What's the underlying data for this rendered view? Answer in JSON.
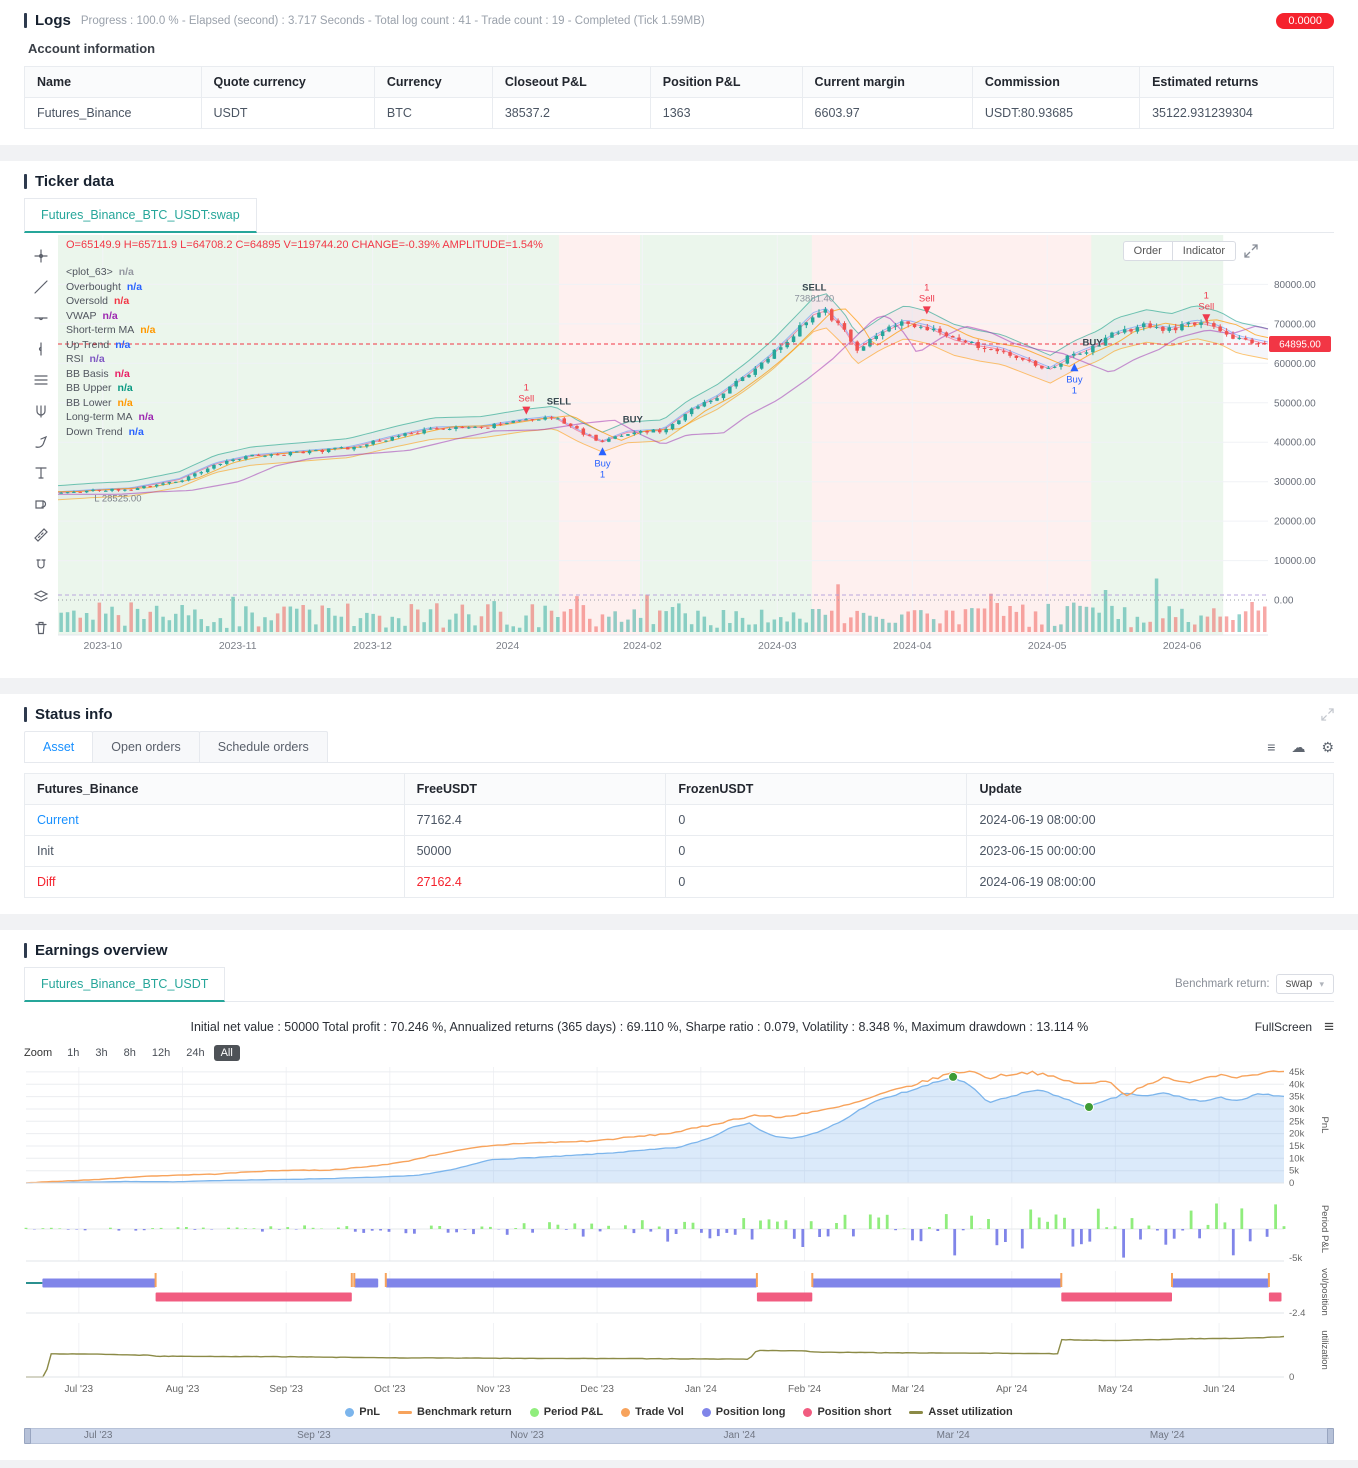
{
  "theme": {
    "accent": "#2e3a4e",
    "tab_active": "#26a69a",
    "link_blue": "#1890ff",
    "danger_red": "#f5222d",
    "candle_up": "#26a69a",
    "candle_down": "#ef5350",
    "buy_blue": "#2962ff",
    "sell_red": "#ef3b4f",
    "zone_green": "rgba(76,175,80,0.11)",
    "zone_pink": "rgba(244,67,54,0.08)"
  },
  "logs": {
    "title": "Logs",
    "progress_text": "Progress : 100.0 % - Elapsed (second) : 3.717 Seconds - Total log count : 41 - Trade count : 19 - Completed (Tick 1.59MB)",
    "badge": "0.0000",
    "account_info": {
      "title": "Account information",
      "columns": [
        "Name",
        "Quote currency",
        "Currency",
        "Closeout P&L",
        "Position P&L",
        "Current margin",
        "Commission",
        "Estimated returns"
      ],
      "rows": [
        [
          "Futures_Binance",
          "USDT",
          "BTC",
          "38537.2",
          "1363",
          "6603.97",
          "USDT:80.93685",
          "35122.931239304"
        ]
      ]
    }
  },
  "ticker": {
    "title": "Ticker data",
    "tab": "Futures_Binance_BTC_USDT:swap",
    "toolbar_icons": [
      "crosshair-icon",
      "trendline-icon",
      "horizontal-line-icon",
      "vertical-line-icon",
      "fib-icon",
      "pitchfork-icon",
      "brush-icon",
      "text-icon",
      "shapes-icon",
      "ruler-icon",
      "magnet-icon",
      "layers-icon",
      "trash-icon"
    ],
    "ohlc_line": "O=65149.9 H=65711.9 L=64708.2 C=64895 V=119744.20 CHANGE=-0.39% AMPLITUDE=1.54%",
    "buttons": [
      "Order",
      "Indicator"
    ],
    "legend": [
      {
        "label": "<plot_63>",
        "value": "n/a",
        "color": "#9598a1"
      },
      {
        "label": "Overbought",
        "value": "n/a",
        "color": "#2962ff"
      },
      {
        "label": "Oversold",
        "value": "n/a",
        "color": "#f23645"
      },
      {
        "label": "VWAP",
        "value": "n/a",
        "color": "#9c27b0"
      },
      {
        "label": "Short-term MA",
        "value": "n/a",
        "color": "#ff9800"
      },
      {
        "label": "Up Trend",
        "value": "n/a",
        "color": "#2962ff"
      },
      {
        "label": "RSI",
        "value": "n/a",
        "color": "#7e57c2"
      },
      {
        "label": "BB Basis",
        "value": "n/a",
        "color": "#e91e63"
      },
      {
        "label": "BB Upper",
        "value": "n/a",
        "color": "#089981"
      },
      {
        "label": "BB Lower",
        "value": "n/a",
        "color": "#ff9800"
      },
      {
        "label": "Long-term MA",
        "value": "n/a",
        "color": "#9c27b0"
      },
      {
        "label": "Down Trend",
        "value": "n/a",
        "color": "#2962ff"
      }
    ],
    "price_tag": "64895.00",
    "y_ticks": [
      "80000.00",
      "70000.00",
      "60000.00",
      "50000.00",
      "40000.00",
      "30000.00",
      "20000.00",
      "10000.00",
      "0.00"
    ],
    "x_ticks": [
      "2023-10",
      "2023-11",
      "2023-12",
      "2024",
      "2024-02",
      "2024-03",
      "2024-04",
      "2024-05",
      "2024-06"
    ]
  },
  "status": {
    "title": "Status info",
    "tabs": [
      "Asset",
      "Open orders",
      "Schedule orders"
    ],
    "active_tab": "Asset",
    "table": {
      "columns": [
        "Futures_Binance",
        "FreeUSDT",
        "FrozenUSDT",
        "Update"
      ],
      "rows": [
        [
          "Current",
          "77162.4",
          "0",
          "2024-06-19 08:00:00"
        ],
        [
          "Init",
          "50000",
          "0",
          "2023-06-15 00:00:00"
        ],
        [
          "Diff",
          "27162.4",
          "0",
          "2024-06-19 08:00:00"
        ]
      ]
    }
  },
  "earnings": {
    "title": "Earnings overview",
    "tab": "Futures_Binance_BTC_USDT",
    "benchmark_label": "Benchmark return:",
    "benchmark_value": "swap",
    "stats_line": "Initial net value : 50000 Total profit : 70.246 %, Annualized returns (365 days) : 69.110 %, Sharpe ratio : 0.079, Volatility : 8.348 %, Maximum drawdown : 13.114 %",
    "fullscreen_label": "FullScreen",
    "zoom_label": "Zoom",
    "zoom_options": [
      "1h",
      "3h",
      "8h",
      "12h",
      "24h",
      "All"
    ],
    "zoom_active": "All",
    "legend": [
      {
        "label": "PnL",
        "color": "#7cb5ec",
        "type": "dot"
      },
      {
        "label": "Benchmark return",
        "color": "#f7a35c",
        "type": "line"
      },
      {
        "label": "Period P&L",
        "color": "#90ed7d",
        "type": "dot"
      },
      {
        "label": "Trade Vol",
        "color": "#f7a35c",
        "type": "dot"
      },
      {
        "label": "Position long",
        "color": "#8085e9",
        "type": "dot"
      },
      {
        "label": "Position short",
        "color": "#f15c80",
        "type": "dot"
      },
      {
        "label": "Asset utilization",
        "color": "#8b8a46",
        "type": "line"
      }
    ],
    "axis_titles": [
      "PnL",
      "Period P&L",
      "vol/position",
      "utilization"
    ],
    "x_labels": [
      "Jul '23",
      "Aug '23",
      "Sep '23",
      "Oct '23",
      "Nov '23",
      "Dec '23",
      "Jan '24",
      "Feb '24",
      "Mar '24",
      "Apr '24",
      "May '24",
      "Jun '24"
    ],
    "navigator_labels": [
      "Jul '23",
      "Sep '23",
      "Nov '23",
      "Jan '24",
      "Mar '24",
      "May '24"
    ]
  },
  "chart_data": {
    "ticker_chart": {
      "type": "candlestick",
      "y_range": [
        0,
        90000
      ],
      "x_range": [
        "2023-09-27",
        "2024-06-20"
      ],
      "price_anchors": [
        [
          0,
          27200
        ],
        [
          0.03,
          27800
        ],
        [
          0.06,
          28200
        ],
        [
          0.1,
          30500
        ],
        [
          0.13,
          34500
        ],
        [
          0.16,
          36500
        ],
        [
          0.2,
          37500
        ],
        [
          0.24,
          38500
        ],
        [
          0.28,
          41500
        ],
        [
          0.31,
          43500
        ],
        [
          0.35,
          43800
        ],
        [
          0.385,
          45500
        ],
        [
          0.41,
          46300
        ],
        [
          0.43,
          42800
        ],
        [
          0.45,
          40000
        ],
        [
          0.47,
          42500
        ],
        [
          0.5,
          43000
        ],
        [
          0.52,
          47500
        ],
        [
          0.545,
          51500
        ],
        [
          0.57,
          57000
        ],
        [
          0.59,
          62000
        ],
        [
          0.61,
          68000
        ],
        [
          0.625,
          72500
        ],
        [
          0.635,
          73300
        ],
        [
          0.65,
          68500
        ],
        [
          0.66,
          63500
        ],
        [
          0.68,
          67500
        ],
        [
          0.7,
          70500
        ],
        [
          0.72,
          69000
        ],
        [
          0.74,
          66000
        ],
        [
          0.76,
          64500
        ],
        [
          0.78,
          63500
        ],
        [
          0.8,
          61000
        ],
        [
          0.82,
          58500
        ],
        [
          0.84,
          62000
        ],
        [
          0.86,
          64500
        ],
        [
          0.875,
          67500
        ],
        [
          0.9,
          69500
        ],
        [
          0.92,
          68500
        ],
        [
          0.94,
          70500
        ],
        [
          0.96,
          69000
        ],
        [
          0.975,
          66500
        ],
        [
          1,
          64895
        ]
      ],
      "zones": [
        {
          "from": 0,
          "to": 0.414,
          "color": "green"
        },
        {
          "from": 0.414,
          "to": 0.481,
          "color": "pink"
        },
        {
          "from": 0.481,
          "to": 0.623,
          "color": "green"
        },
        {
          "from": 0.623,
          "to": 0.854,
          "color": "pink"
        },
        {
          "from": 0.854,
          "to": 0.963,
          "color": "green"
        }
      ],
      "markers": [
        {
          "x": 0.387,
          "price": 47000,
          "side": "sell",
          "arrow": "down",
          "lines": [
            "1",
            "Sell"
          ]
        },
        {
          "x": 0.414,
          "price": 49600,
          "side": "sell",
          "arrow": null,
          "lines": [
            "SELL"
          ]
        },
        {
          "x": 0.45,
          "price": 38700,
          "side": "buy",
          "arrow": "up",
          "lines": [
            "Buy",
            "1"
          ]
        },
        {
          "x": 0.475,
          "price": 45000,
          "side": "buy",
          "arrow": null,
          "lines": [
            "BUY"
          ]
        },
        {
          "x": 0.625,
          "price": 78500,
          "side": "sell",
          "arrow": null,
          "lines": [
            "SELL",
            "73881.40"
          ]
        },
        {
          "x": 0.718,
          "price": 72400,
          "side": "sell",
          "arrow": "down",
          "lines": [
            "1",
            "Sell"
          ]
        },
        {
          "x": 0.84,
          "price": 60000,
          "side": "buy",
          "arrow": "up",
          "lines": [
            "Buy",
            "1"
          ]
        },
        {
          "x": 0.855,
          "price": 64500,
          "side": "buy",
          "arrow": null,
          "lines": [
            "BUY"
          ]
        },
        {
          "x": 0.949,
          "price": 70400,
          "side": "sell",
          "arrow": "down",
          "lines": [
            "1",
            "Sell"
          ]
        }
      ],
      "current_price": 64895,
      "last_candle": {
        "o": 65149.9,
        "h": 65711.9,
        "l": 64708.2,
        "c": 64895
      },
      "low_annotation": {
        "x": 0.03,
        "price": 28525,
        "text": "L  28525.00"
      },
      "candles": 190,
      "noise_seed": 11
    },
    "earnings_chart": {
      "type": "multi-panel",
      "seed": 7,
      "pnl": {
        "ylim": [
          0,
          47000
        ],
        "yticks": [
          "45k",
          "40k",
          "35k",
          "30k",
          "25k",
          "20k",
          "15k",
          "10k",
          "5k",
          "0"
        ],
        "anchors": [
          [
            0,
            0
          ],
          [
            0.04,
            300
          ],
          [
            0.08,
            600
          ],
          [
            0.12,
            500
          ],
          [
            0.16,
            1100
          ],
          [
            0.2,
            1400
          ],
          [
            0.24,
            1800
          ],
          [
            0.28,
            2400
          ],
          [
            0.31,
            3000
          ],
          [
            0.34,
            5500
          ],
          [
            0.37,
            9500
          ],
          [
            0.4,
            10200
          ],
          [
            0.43,
            11000
          ],
          [
            0.46,
            12000
          ],
          [
            0.49,
            13200
          ],
          [
            0.52,
            14500
          ],
          [
            0.545,
            18500
          ],
          [
            0.56,
            22500
          ],
          [
            0.575,
            24500
          ],
          [
            0.59,
            19500
          ],
          [
            0.61,
            18000
          ],
          [
            0.63,
            20500
          ],
          [
            0.65,
            25500
          ],
          [
            0.67,
            32000
          ],
          [
            0.69,
            35500
          ],
          [
            0.71,
            38500
          ],
          [
            0.725,
            41000
          ],
          [
            0.737,
            43000
          ],
          [
            0.75,
            39500
          ],
          [
            0.765,
            32500
          ],
          [
            0.78,
            34500
          ],
          [
            0.795,
            37000
          ],
          [
            0.81,
            37500
          ],
          [
            0.825,
            34000
          ],
          [
            0.845,
            30800
          ],
          [
            0.86,
            33500
          ],
          [
            0.875,
            36500
          ],
          [
            0.89,
            35000
          ],
          [
            0.905,
            36500
          ],
          [
            0.92,
            34500
          ],
          [
            0.935,
            33000
          ],
          [
            0.95,
            34500
          ],
          [
            0.965,
            33500
          ],
          [
            0.98,
            36000
          ],
          [
            1,
            35100
          ]
        ]
      },
      "benchmark": {
        "anchors": [
          [
            0,
            0
          ],
          [
            0.03,
            800
          ],
          [
            0.06,
            1500
          ],
          [
            0.09,
            2600
          ],
          [
            0.12,
            3200
          ],
          [
            0.15,
            3600
          ],
          [
            0.18,
            4600
          ],
          [
            0.21,
            5200
          ],
          [
            0.24,
            5200
          ],
          [
            0.27,
            6500
          ],
          [
            0.3,
            8500
          ],
          [
            0.33,
            12000
          ],
          [
            0.36,
            14500
          ],
          [
            0.39,
            16000
          ],
          [
            0.42,
            16500
          ],
          [
            0.45,
            17000
          ],
          [
            0.48,
            18500
          ],
          [
            0.51,
            20000
          ],
          [
            0.54,
            23000
          ],
          [
            0.565,
            26000
          ],
          [
            0.58,
            27500
          ],
          [
            0.6,
            26500
          ],
          [
            0.62,
            28500
          ],
          [
            0.64,
            30000
          ],
          [
            0.66,
            32500
          ],
          [
            0.68,
            36000
          ],
          [
            0.7,
            39000
          ],
          [
            0.72,
            42000
          ],
          [
            0.735,
            44500
          ],
          [
            0.75,
            45500
          ],
          [
            0.765,
            42500
          ],
          [
            0.78,
            44000
          ],
          [
            0.8,
            45000
          ],
          [
            0.815,
            43000
          ],
          [
            0.83,
            41000
          ],
          [
            0.845,
            40000
          ],
          [
            0.86,
            41500
          ],
          [
            0.875,
            35500
          ],
          [
            0.89,
            40000
          ],
          [
            0.905,
            42500
          ],
          [
            0.92,
            40500
          ],
          [
            0.935,
            42500
          ],
          [
            0.95,
            44000
          ],
          [
            0.965,
            43000
          ],
          [
            0.98,
            44500
          ],
          [
            1,
            45200
          ]
        ]
      },
      "max_markers": [
        [
          0.737,
          43000
        ],
        [
          0.845,
          30800
        ]
      ],
      "period_pnl": {
        "ylim": [
          -5500,
          5500
        ],
        "count": 150,
        "min_label": "-5k"
      },
      "positions": {
        "min_label": "-2.4",
        "segments": [
          {
            "from": 0,
            "to": 0.013,
            "side": "flat"
          },
          {
            "from": 0.013,
            "to": 0.103,
            "side": "long"
          },
          {
            "from": 0.103,
            "to": 0.259,
            "side": "short"
          },
          {
            "from": 0.261,
            "to": 0.28,
            "side": "long"
          },
          {
            "from": 0.286,
            "to": 0.581,
            "side": "long"
          },
          {
            "from": 0.581,
            "to": 0.625,
            "side": "short"
          },
          {
            "from": 0.625,
            "to": 0.823,
            "side": "long"
          },
          {
            "from": 0.823,
            "to": 0.911,
            "side": "short"
          },
          {
            "from": 0.911,
            "to": 0.988,
            "side": "long"
          },
          {
            "from": 0.988,
            "to": 0.998,
            "side": "short"
          }
        ]
      },
      "trade_ticks": [
        0.103,
        0.259,
        0.261,
        0.286,
        0.581,
        0.625,
        0.823,
        0.911,
        0.988
      ],
      "utilization": {
        "ylim": [
          0,
          1.3
        ],
        "min_label": "0",
        "anchors": [
          [
            0,
            0
          ],
          [
            0.016,
            0
          ],
          [
            0.018,
            0.56
          ],
          [
            0.06,
            0.55
          ],
          [
            0.1,
            0.52
          ],
          [
            0.103,
            0.5
          ],
          [
            0.2,
            0.49
          ],
          [
            0.26,
            0.47
          ],
          [
            0.3,
            0.46
          ],
          [
            0.4,
            0.45
          ],
          [
            0.5,
            0.44
          ],
          [
            0.575,
            0.43
          ],
          [
            0.581,
            0.64
          ],
          [
            0.62,
            0.63
          ],
          [
            0.625,
            0.6
          ],
          [
            0.7,
            0.58
          ],
          [
            0.78,
            0.57
          ],
          [
            0.82,
            0.56
          ],
          [
            0.823,
            0.9
          ],
          [
            0.86,
            0.88
          ],
          [
            0.9,
            0.9
          ],
          [
            0.92,
            0.92
          ],
          [
            0.96,
            0.93
          ],
          [
            0.985,
            0.95
          ],
          [
            1,
            0.97
          ]
        ]
      }
    }
  }
}
